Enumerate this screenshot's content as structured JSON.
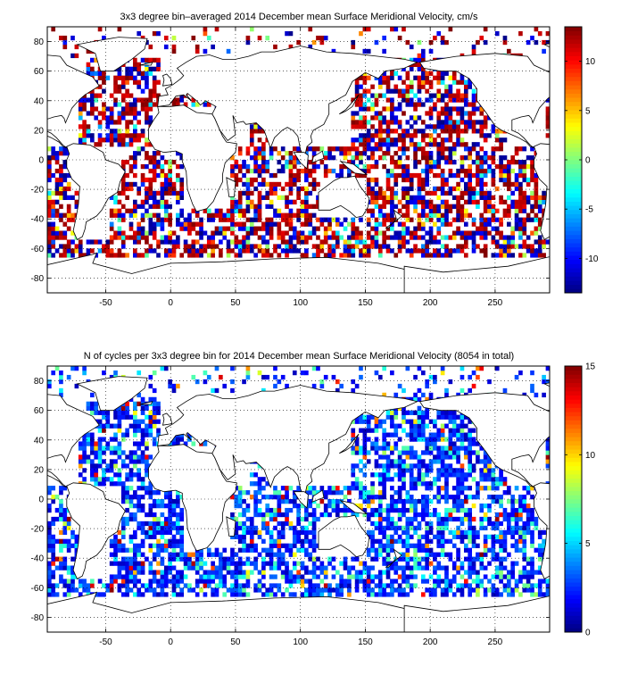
{
  "chart_data": [
    {
      "type": "heatmap",
      "title": "3x3 degree bin–averaged 2014 December mean Surface Meridional Velocity, cm/s",
      "xlabel": "",
      "ylabel": "",
      "xlim": [
        -95,
        292
      ],
      "ylim": [
        -90,
        90
      ],
      "x_ticks": [
        -50,
        0,
        50,
        100,
        150,
        200,
        250
      ],
      "y_ticks": [
        80,
        60,
        40,
        20,
        0,
        -20,
        -40,
        -60,
        -80
      ],
      "grid": true,
      "bin_size_deg": 3,
      "colorbar": {
        "range": [
          -13.5,
          13.5
        ],
        "ticks": [
          10,
          5,
          0,
          -5,
          -10
        ],
        "colormap": "jet"
      },
      "value_range": [
        -13.5,
        13.5
      ],
      "seed": 17
    },
    {
      "type": "heatmap",
      "title": "N of cycles per 3x3 degree bin for 2014 December mean Surface Meridional Velocity (8054 in total)",
      "xlabel": "",
      "ylabel": "",
      "xlim": [
        -95,
        292
      ],
      "ylim": [
        -90,
        90
      ],
      "x_ticks": [
        -50,
        0,
        50,
        100,
        150,
        200,
        250
      ],
      "y_ticks": [
        80,
        60,
        40,
        20,
        0,
        -20,
        -40,
        -60,
        -80
      ],
      "grid": true,
      "bin_size_deg": 3,
      "colorbar": {
        "range": [
          0,
          15
        ],
        "ticks": [
          15,
          10,
          5,
          0
        ],
        "colormap": "jet"
      },
      "value_range": [
        0,
        15
      ],
      "seed": 91
    }
  ]
}
